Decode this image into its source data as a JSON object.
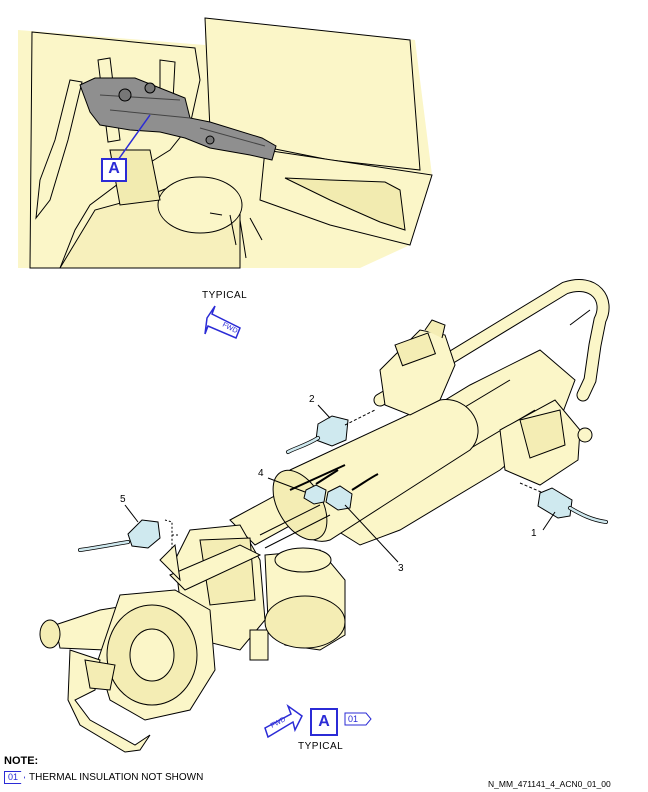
{
  "view_labels": {
    "typical_top": "TYPICAL",
    "typical_bottom": "TYPICAL"
  },
  "fwd_text": "FWD",
  "detail": {
    "top_label": "A",
    "bottom_label": "A",
    "note_tag": "01"
  },
  "callouts": [
    {
      "id": "1",
      "text": "1"
    },
    {
      "id": "2",
      "text": "2"
    },
    {
      "id": "3",
      "text": "3"
    },
    {
      "id": "4",
      "text": "4"
    },
    {
      "id": "5",
      "text": "5"
    }
  ],
  "note": {
    "title": "NOTE:",
    "tag": "01",
    "text": "THERMAL INSULATION NOT SHOWN"
  },
  "figure_ref": "N_MM_471141_4_ACN0_01_00",
  "colors": {
    "fill": "#fbf6c8",
    "stroke": "#000000",
    "accent": "#2b2bd6",
    "hose": "#cfe9ef",
    "shadow": "#8f8f8f"
  }
}
